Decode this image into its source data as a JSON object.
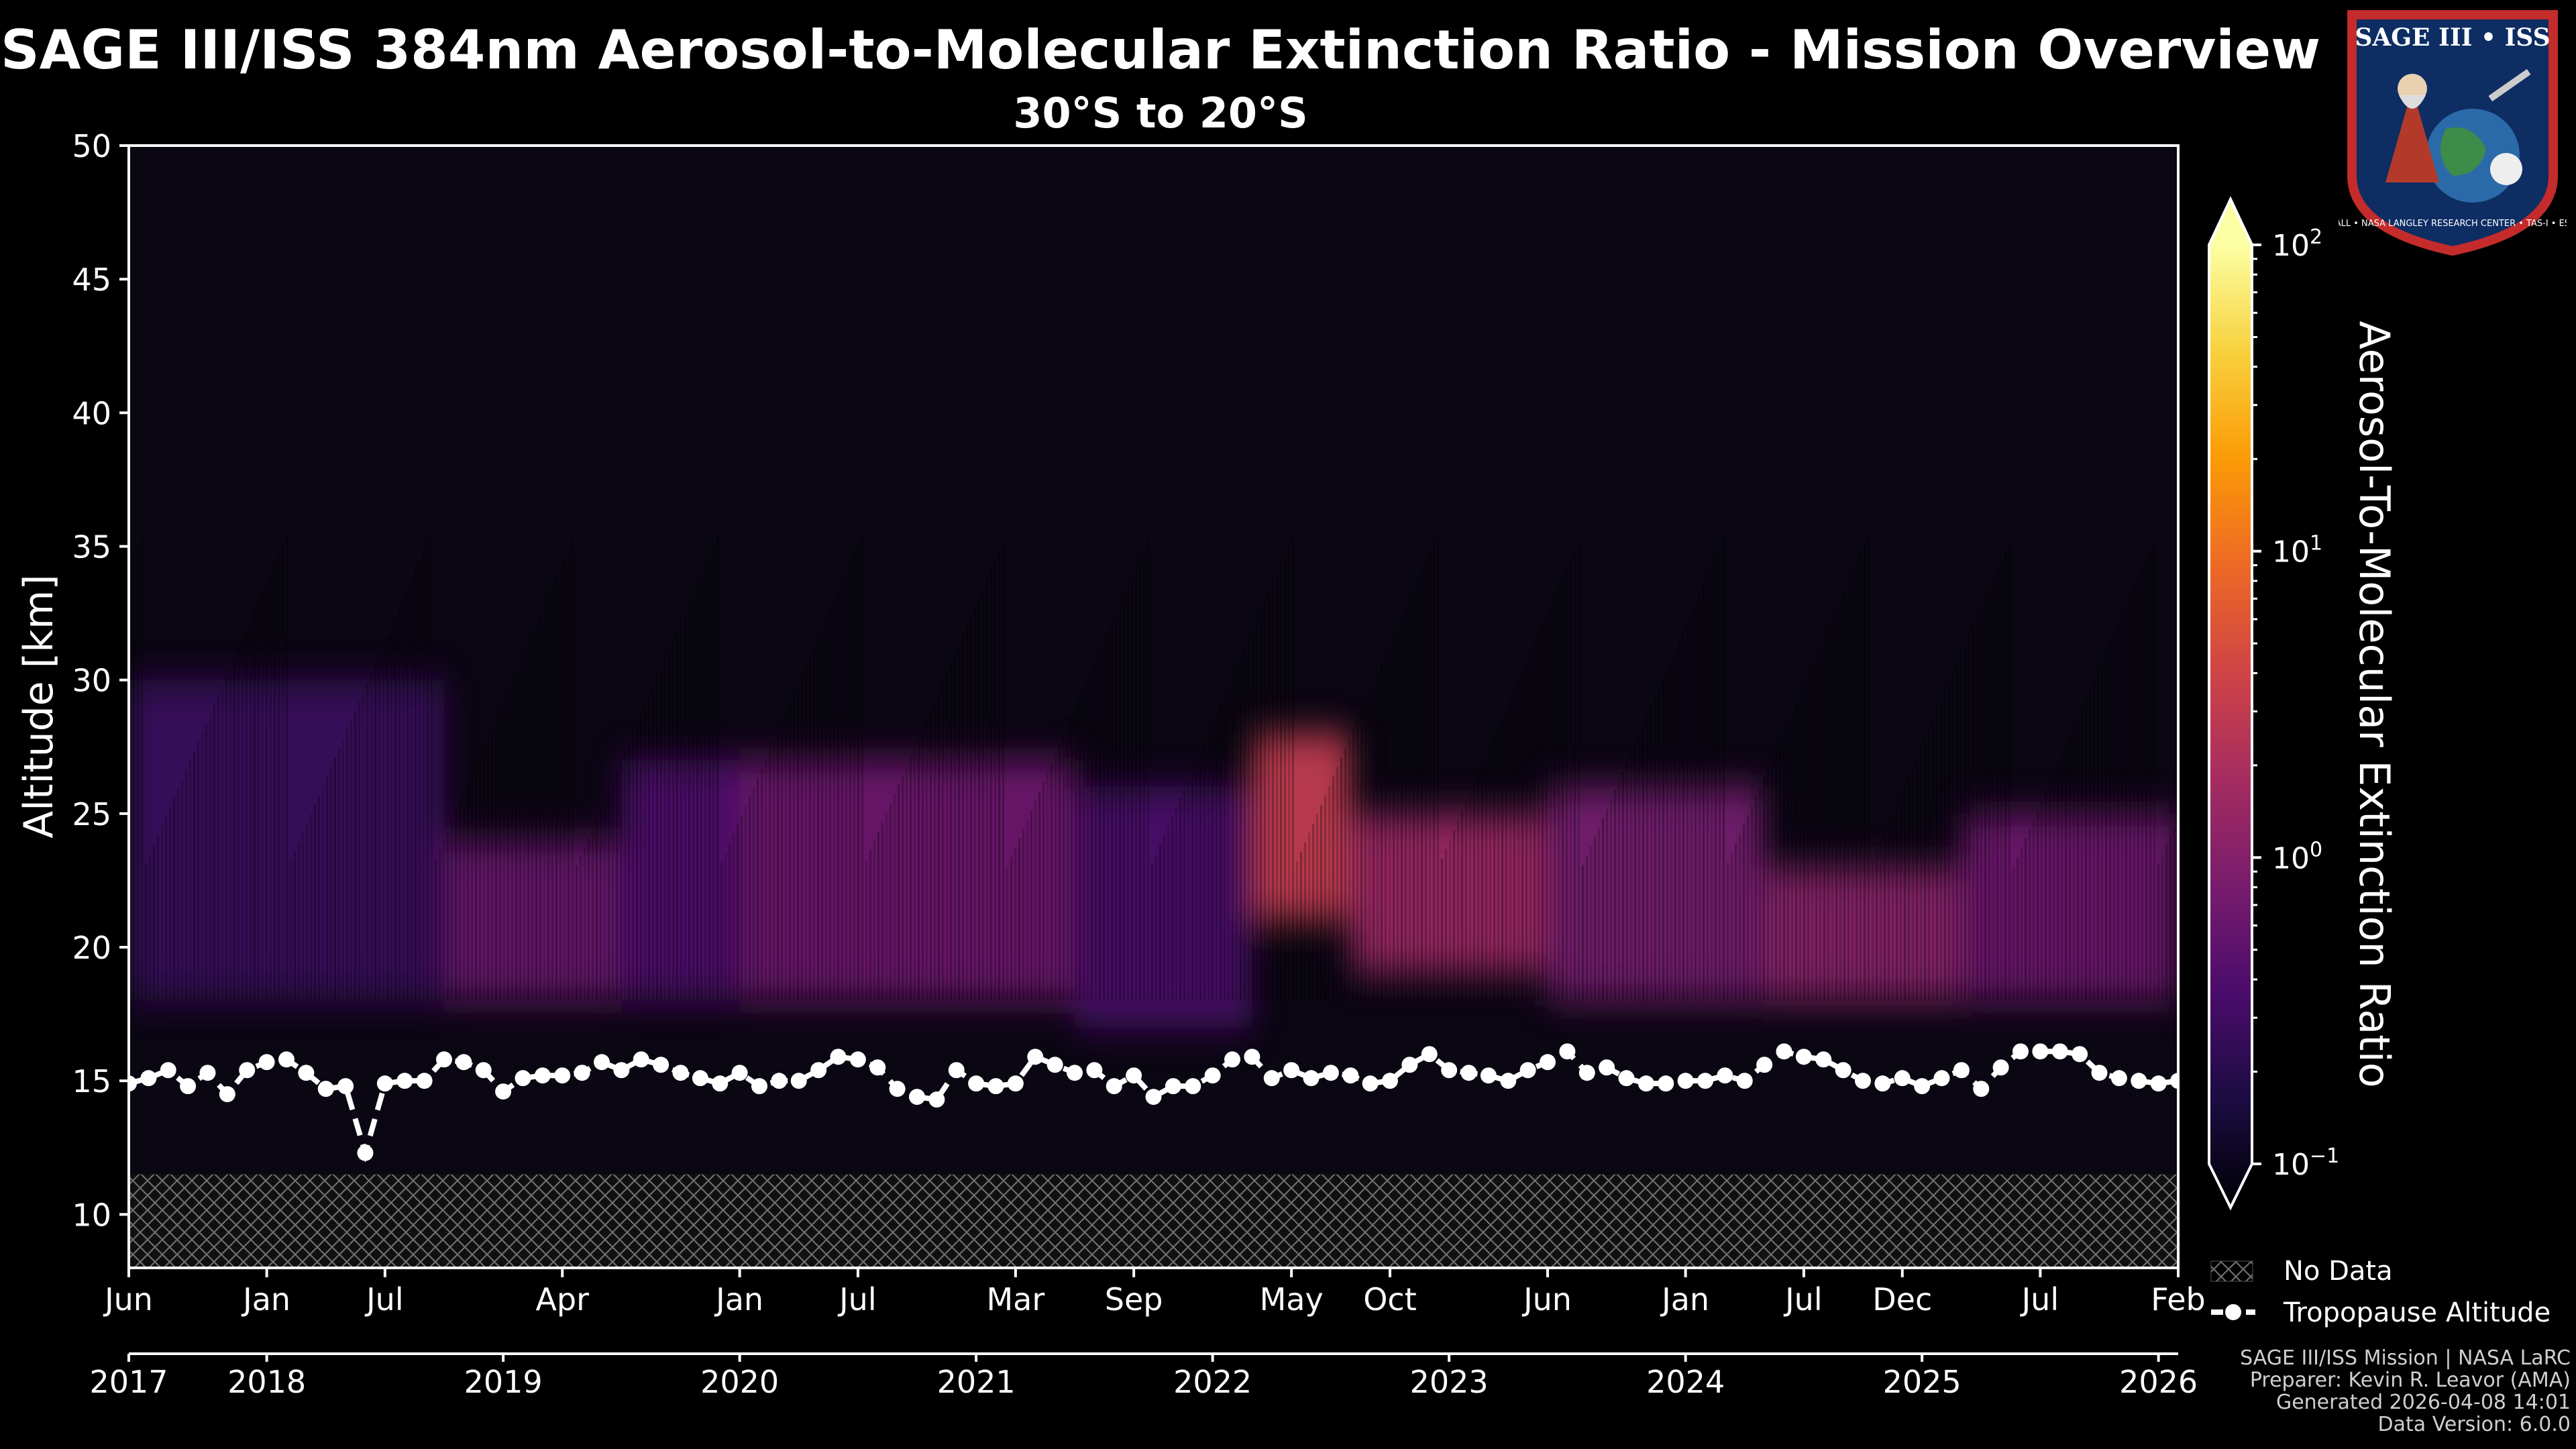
{
  "title": "SAGE III/ISS 384nm Aerosol-to-Molecular Extinction Ratio - Mission Overview",
  "subtitle": "30°S to 20°S",
  "chart_data": {
    "type": "heatmap",
    "ylabel": "Altitude [km]",
    "ylim": [
      8,
      50
    ],
    "yticks": [
      10,
      15,
      20,
      25,
      30,
      35,
      40,
      45,
      50
    ],
    "xlim": [
      "2017-06",
      "2026-02"
    ],
    "x_month_ticks": [
      {
        "date": "2017-06",
        "label": "Jun"
      },
      {
        "date": "2018-01",
        "label": "Jan"
      },
      {
        "date": "2018-07",
        "label": "Jul"
      },
      {
        "date": "2019-04",
        "label": "Apr"
      },
      {
        "date": "2020-01",
        "label": "Jan"
      },
      {
        "date": "2020-07",
        "label": "Jul"
      },
      {
        "date": "2021-03",
        "label": "Mar"
      },
      {
        "date": "2021-09",
        "label": "Sep"
      },
      {
        "date": "2022-05",
        "label": "May"
      },
      {
        "date": "2022-10",
        "label": "Oct"
      },
      {
        "date": "2023-06",
        "label": "Jun"
      },
      {
        "date": "2024-01",
        "label": "Jan"
      },
      {
        "date": "2024-07",
        "label": "Jul"
      },
      {
        "date": "2024-12",
        "label": "Dec"
      },
      {
        "date": "2025-07",
        "label": "Jul"
      },
      {
        "date": "2026-02",
        "label": "Feb"
      }
    ],
    "x_year_ticks": [
      {
        "date": "2017-06",
        "label": "2017"
      },
      {
        "date": "2018-01",
        "label": "2018"
      },
      {
        "date": "2019-01",
        "label": "2019"
      },
      {
        "date": "2020-01",
        "label": "2020"
      },
      {
        "date": "2021-01",
        "label": "2021"
      },
      {
        "date": "2022-01",
        "label": "2022"
      },
      {
        "date": "2023-01",
        "label": "2023"
      },
      {
        "date": "2024-01",
        "label": "2024"
      },
      {
        "date": "2025-01",
        "label": "2025"
      },
      {
        "date": "2026-01",
        "label": "2026"
      }
    ],
    "colorbar": {
      "label": "Aerosol-To-Molecular Extinction Ratio",
      "scale": "log",
      "range": [
        0.1,
        100
      ],
      "ticks": [
        {
          "value": 100,
          "base": "10",
          "exp": "2"
        },
        {
          "value": 10,
          "base": "10",
          "exp": "1"
        },
        {
          "value": 1,
          "base": "10",
          "exp": "0"
        },
        {
          "value": 0.1,
          "base": "10",
          "exp": "−1"
        }
      ],
      "colormap": "inferno",
      "stops": [
        "#000004",
        "#1b0c41",
        "#4a0c6b",
        "#781c6d",
        "#a52c60",
        "#cf4446",
        "#ed6925",
        "#fb9b06",
        "#f7d13d",
        "#fcffa4"
      ]
    },
    "aerosol_layers": [
      {
        "start": "2017-06",
        "end": "2018-10",
        "ratio": 0.35,
        "alt_low": 18,
        "alt_high": 30
      },
      {
        "start": "2018-10",
        "end": "2019-07",
        "ratio": 0.75,
        "alt_low": 18,
        "alt_high": 24
      },
      {
        "start": "2019-07",
        "end": "2020-01",
        "ratio": 0.5,
        "alt_low": 18,
        "alt_high": 27
      },
      {
        "start": "2020-01",
        "end": "2021-06",
        "ratio": 0.8,
        "alt_low": 18,
        "alt_high": 27
      },
      {
        "start": "2021-06",
        "end": "2022-03",
        "ratio": 0.45,
        "alt_low": 17,
        "alt_high": 26
      },
      {
        "start": "2022-03",
        "end": "2022-08",
        "ratio": 3.5,
        "alt_low": 21,
        "alt_high": 28
      },
      {
        "start": "2022-08",
        "end": "2023-06",
        "ratio": 1.8,
        "alt_low": 19,
        "alt_high": 25
      },
      {
        "start": "2023-06",
        "end": "2024-05",
        "ratio": 0.9,
        "alt_low": 18,
        "alt_high": 26
      },
      {
        "start": "2024-05",
        "end": "2025-03",
        "ratio": 1.3,
        "alt_low": 18,
        "alt_high": 23
      },
      {
        "start": "2025-03",
        "end": "2026-02",
        "ratio": 0.8,
        "alt_low": 18,
        "alt_high": 25
      }
    ],
    "no_data_below_km": 11.5,
    "tropopause_altitude": {
      "name": "Tropopause Altitude",
      "x": [
        "2017-06",
        "2017-07",
        "2017-08",
        "2017-09",
        "2017-10",
        "2017-11",
        "2017-12",
        "2018-01",
        "2018-02",
        "2018-03",
        "2018-04",
        "2018-05",
        "2018-06",
        "2018-07",
        "2018-08",
        "2018-09",
        "2018-10",
        "2018-11",
        "2018-12",
        "2019-01",
        "2019-02",
        "2019-03",
        "2019-04",
        "2019-05",
        "2019-06",
        "2019-07",
        "2019-08",
        "2019-09",
        "2019-10",
        "2019-11",
        "2019-12",
        "2020-01",
        "2020-02",
        "2020-03",
        "2020-04",
        "2020-05",
        "2020-06",
        "2020-07",
        "2020-08",
        "2020-09",
        "2020-10",
        "2020-11",
        "2020-12",
        "2021-01",
        "2021-02",
        "2021-03",
        "2021-04",
        "2021-05",
        "2021-06",
        "2021-07",
        "2021-08",
        "2021-09",
        "2021-10",
        "2021-11",
        "2021-12",
        "2022-01",
        "2022-02",
        "2022-03",
        "2022-04",
        "2022-05",
        "2022-06",
        "2022-07",
        "2022-08",
        "2022-09",
        "2022-10",
        "2022-11",
        "2022-12",
        "2023-01",
        "2023-02",
        "2023-03",
        "2023-04",
        "2023-05",
        "2023-06",
        "2023-07",
        "2023-08",
        "2023-09",
        "2023-10",
        "2023-11",
        "2023-12",
        "2024-01",
        "2024-02",
        "2024-03",
        "2024-04",
        "2024-05",
        "2024-06",
        "2024-07",
        "2024-08",
        "2024-09",
        "2024-10",
        "2024-11",
        "2024-12",
        "2025-01",
        "2025-02",
        "2025-03",
        "2025-04",
        "2025-05",
        "2025-06",
        "2025-07",
        "2025-08",
        "2025-09",
        "2025-10",
        "2025-11",
        "2025-12",
        "2026-01",
        "2026-02"
      ],
      "y": [
        14.9,
        15.1,
        15.4,
        14.8,
        15.3,
        14.5,
        15.4,
        15.7,
        15.8,
        15.3,
        14.7,
        14.8,
        12.3,
        14.9,
        15.0,
        15.0,
        15.8,
        15.7,
        15.4,
        14.6,
        15.1,
        15.2,
        15.2,
        15.3,
        15.7,
        15.4,
        15.8,
        15.6,
        15.3,
        15.1,
        14.9,
        15.3,
        14.8,
        15.0,
        15.0,
        15.4,
        15.9,
        15.8,
        15.5,
        14.7,
        14.4,
        14.3,
        15.4,
        14.9,
        14.8,
        14.9,
        15.9,
        15.6,
        15.3,
        15.4,
        14.8,
        15.2,
        14.4,
        14.8,
        14.8,
        15.2,
        15.8,
        15.9,
        15.1,
        15.4,
        15.1,
        15.3,
        15.2,
        14.9,
        15.0,
        15.6,
        16.0,
        15.4,
        15.3,
        15.2,
        15.0,
        15.4,
        15.7,
        16.1,
        15.3,
        15.5,
        15.1,
        14.9,
        14.9,
        15.0,
        15.0,
        15.2,
        15.0,
        15.6,
        16.1,
        15.9,
        15.8,
        15.4,
        15.0,
        14.9,
        15.1,
        14.8,
        15.1,
        15.4,
        14.7,
        15.5,
        16.1,
        16.1,
        16.1,
        16.0,
        15.3,
        15.1,
        15.0,
        14.9,
        15.0
      ]
    },
    "legend": [
      {
        "key": "no_data",
        "label": "No Data"
      },
      {
        "key": "tropopause",
        "label": "Tropopause Altitude"
      }
    ]
  },
  "logo": {
    "line1": "SAGE III • ISS",
    "ring_text": "BALL • NASA LANGLEY RESEARCH CENTER • TAS-I • ESA"
  },
  "footer": [
    "SAGE III/ISS Mission | NASA LaRC",
    "Preparer: Kevin R. Leavor (AMA)",
    "Generated 2026-04-08 14:01",
    "Data Version: 6.0.0"
  ]
}
